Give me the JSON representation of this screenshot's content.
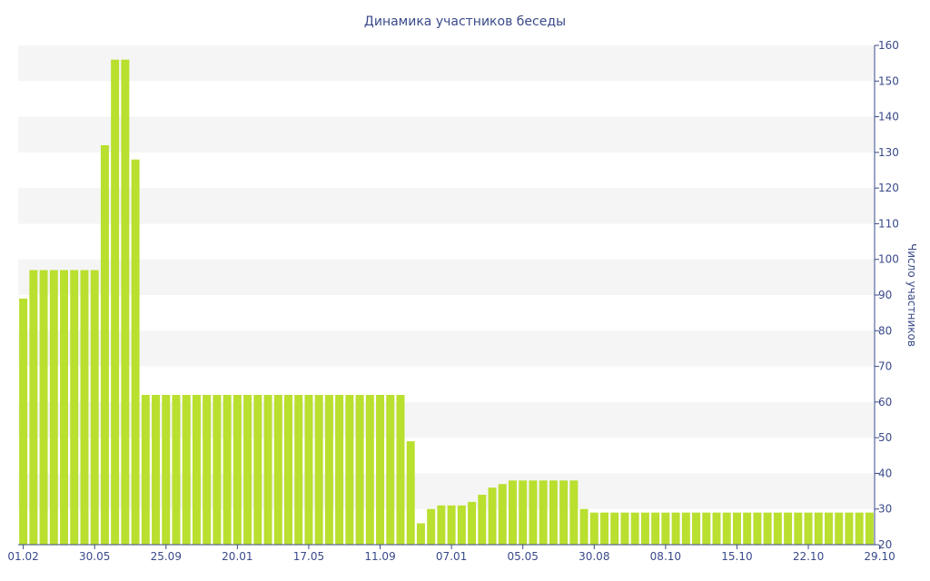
{
  "chart_data": {
    "type": "bar",
    "title": "Динамика участников беседы",
    "xlabel": "",
    "ylabel": "Число участников",
    "ylim": [
      20,
      160
    ],
    "y_ticks": [
      20,
      30,
      40,
      50,
      60,
      70,
      80,
      90,
      100,
      110,
      120,
      130,
      140,
      150,
      160
    ],
    "y_axis_side": "right",
    "grid": "alternating horizontal bands",
    "legend": "none",
    "bar_color": "#b9df2f",
    "axis_color": "#3a4a8a",
    "x_tick_labels": [
      {
        "label": "01.02",
        "index": 0
      },
      {
        "label": "30.05",
        "index": 7
      },
      {
        "label": "25.09",
        "index": 14
      },
      {
        "label": "20.01",
        "index": 21
      },
      {
        "label": "17.05",
        "index": 28
      },
      {
        "label": "11.09",
        "index": 35
      },
      {
        "label": "07.01",
        "index": 42
      },
      {
        "label": "05.05",
        "index": 49
      },
      {
        "label": "30.08",
        "index": 56
      },
      {
        "label": "08.10",
        "index": 63
      },
      {
        "label": "15.10",
        "index": 70
      },
      {
        "label": "22.10",
        "index": 77
      },
      {
        "label": "29.10",
        "index": 84
      }
    ],
    "values": [
      89,
      97,
      97,
      97,
      97,
      97,
      97,
      97,
      132,
      156,
      156,
      128,
      62,
      62,
      62,
      62,
      62,
      62,
      62,
      62,
      62,
      62,
      62,
      62,
      62,
      62,
      62,
      62,
      62,
      62,
      62,
      62,
      62,
      62,
      62,
      62,
      62,
      62,
      49,
      26,
      30,
      31,
      31,
      31,
      32,
      34,
      36,
      37,
      38,
      38,
      38,
      38,
      38,
      38,
      38,
      30,
      29,
      29,
      29,
      29,
      29,
      29,
      29,
      29,
      29,
      29,
      29,
      29,
      29,
      29,
      29,
      29,
      29,
      29,
      29,
      29,
      29,
      29,
      29,
      29,
      29,
      29,
      29,
      29
    ]
  }
}
